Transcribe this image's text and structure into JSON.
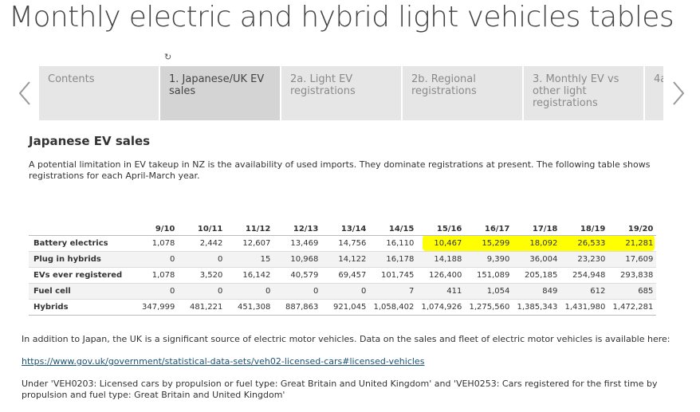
{
  "page": {
    "title": "Monthly electric and hybrid light vehicles tables"
  },
  "tabs": [
    {
      "label": "Contents"
    },
    {
      "label": "1. Japanese/UK EV sales",
      "active": true
    },
    {
      "label": "2a. Light EV registrations"
    },
    {
      "label": "2b. Regional registrations"
    },
    {
      "label": "3. Monthly EV vs other light registrations"
    },
    {
      "label": "4a"
    }
  ],
  "icons": {
    "reload": "reload-icon",
    "prev": "chevron-left-icon",
    "next": "chevron-right-icon"
  },
  "section": {
    "title": "Japanese EV sales",
    "intro": "A potential limitation in EV takeup in NZ is the availability of used imports. They dominate registrations at present. The following table shows registrations for each April-March year."
  },
  "table": {
    "headers": [
      "",
      "9/10",
      "10/11",
      "11/12",
      "12/13",
      "13/14",
      "14/15",
      "15/16",
      "16/17",
      "17/18",
      "18/19",
      "19/20"
    ],
    "rows": [
      [
        "Battery electrics",
        "1,078",
        "2,442",
        "12,607",
        "13,469",
        "14,756",
        "16,110",
        "10,467",
        "15,299",
        "18,092",
        "26,533",
        "21,281"
      ],
      [
        "Plug in hybrids",
        "0",
        "0",
        "15",
        "10,968",
        "14,122",
        "16,178",
        "14,188",
        "9,390",
        "36,004",
        "23,230",
        "17,609"
      ],
      [
        "EVs ever registered",
        "1,078",
        "3,520",
        "16,142",
        "40,579",
        "69,457",
        "101,745",
        "126,400",
        "151,089",
        "205,185",
        "254,948",
        "293,838"
      ],
      [
        "Fuel cell",
        "0",
        "0",
        "0",
        "0",
        "0",
        "7",
        "411",
        "1,054",
        "849",
        "612",
        "685"
      ],
      [
        "Hybrids",
        "347,999",
        "481,221",
        "451,308",
        "887,863",
        "921,045",
        "1,058,402",
        "1,074,926",
        "1,275,560",
        "1,385,343",
        "1,431,980",
        "1,472,281"
      ]
    ],
    "highlight_color": "#ffff00"
  },
  "footer": {
    "para1": "In addition to Japan, the UK is a significant source of electric motor vehicles. Data on the sales and fleet of electric motor vehicles is available here:",
    "link": "https://www.gov.uk/government/statistical-data-sets/veh02-licensed-cars#licensed-vehicles",
    "para2": "Under 'VEH0203: Licensed cars by propulsion or fuel type: Great Britain and United Kingdom' and 'VEH0253: Cars registered for the first time by propulsion and fuel type: Great Britain and United Kingdom'"
  }
}
